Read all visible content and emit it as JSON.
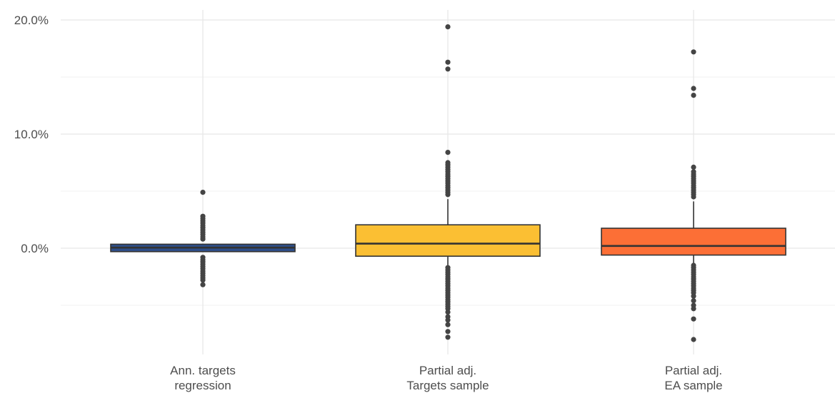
{
  "chart_data": {
    "type": "boxplot",
    "title": "",
    "xlabel": "",
    "ylabel": "",
    "ylim": [
      -8.5,
      20.8
    ],
    "y_ticks": [
      {
        "value": 20,
        "label": "20.0%"
      },
      {
        "value": 10,
        "label": "10.0%"
      },
      {
        "value": 0,
        "label": "0.0%"
      }
    ],
    "y_minor_gridlines": [
      15,
      5,
      -5
    ],
    "grid": true,
    "legend": "none",
    "categories": [
      {
        "label_line1": "Ann. targets",
        "label_line2": "regression"
      },
      {
        "label_line1": "Partial adj.",
        "label_line2": "Targets sample"
      },
      {
        "label_line1": "Partial adj.",
        "label_line2": "EA sample"
      }
    ],
    "boxes": [
      {
        "color": "#2e4f8a",
        "q1": -0.3,
        "median": 0.05,
        "q3": 0.35,
        "whisker_low": -0.3,
        "whisker_high": 0.35,
        "outliers": [
          4.9,
          2.8,
          2.6,
          2.4,
          2.2,
          2.0,
          1.8,
          1.6,
          1.4,
          1.2,
          1.0,
          0.8,
          -0.8,
          -1.0,
          -1.2,
          -1.4,
          -1.6,
          -1.8,
          -2.0,
          -2.2,
          -2.4,
          -2.6,
          -2.8,
          -3.2
        ]
      },
      {
        "color": "#fbbf33",
        "q1": -0.7,
        "median": 0.4,
        "q3": 2.05,
        "whisker_low": -1.5,
        "whisker_high": 4.3,
        "outliers": [
          19.4,
          16.3,
          15.7,
          8.4,
          7.5,
          7.3,
          7.1,
          6.9,
          6.7,
          6.5,
          6.3,
          6.1,
          5.9,
          5.7,
          5.5,
          5.3,
          5.1,
          4.9,
          4.7,
          -1.7,
          -1.9,
          -2.1,
          -2.3,
          -2.5,
          -2.7,
          -2.9,
          -3.1,
          -3.3,
          -3.5,
          -3.7,
          -3.9,
          -4.1,
          -4.3,
          -4.5,
          -4.7,
          -4.9,
          -5.1,
          -5.3,
          -5.6,
          -6.0,
          -6.3,
          -6.7,
          -7.3,
          -7.8
        ]
      },
      {
        "color": "#fc6f36",
        "q1": -0.6,
        "median": 0.2,
        "q3": 1.75,
        "whisker_low": -1.3,
        "whisker_high": 4.1,
        "outliers": [
          17.2,
          14.0,
          13.4,
          7.1,
          6.7,
          6.5,
          6.3,
          6.1,
          5.9,
          5.7,
          5.5,
          5.3,
          5.1,
          4.9,
          4.7,
          4.5,
          -1.5,
          -1.7,
          -1.9,
          -2.1,
          -2.3,
          -2.5,
          -2.7,
          -2.9,
          -3.1,
          -3.3,
          -3.5,
          -3.7,
          -3.9,
          -4.2,
          -4.6,
          -5.0,
          -5.3,
          -6.2,
          -8.0
        ]
      }
    ]
  }
}
